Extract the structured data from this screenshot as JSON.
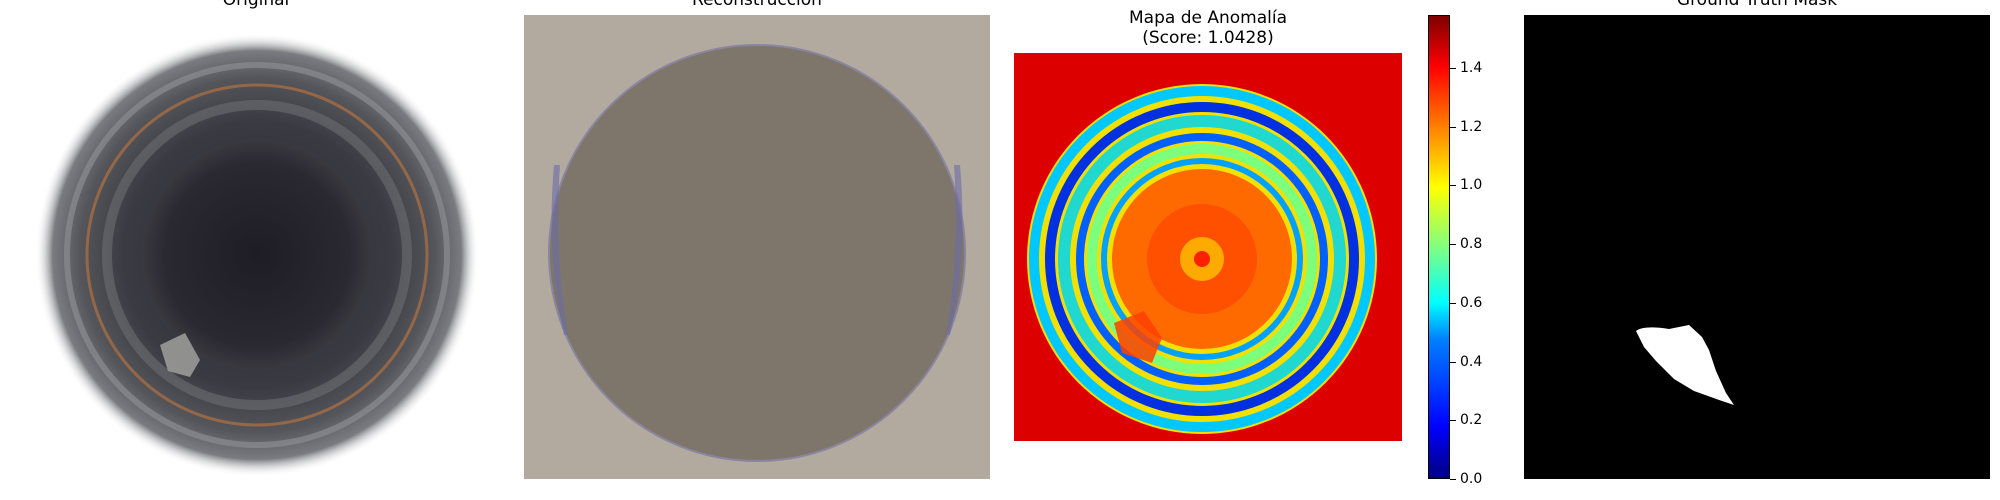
{
  "panels": {
    "original": {
      "title": "Original"
    },
    "reconstruction": {
      "title": "Reconstrucción"
    },
    "anomaly": {
      "title_line1": "Mapa de Anomalía",
      "title_line2": "(Score: 1.0428)"
    },
    "mask": {
      "title": "Ground Truth Mask"
    }
  },
  "colorbar": {
    "ticks": [
      "0.0",
      "0.2",
      "0.4",
      "0.6",
      "0.8",
      "1.0",
      "1.2",
      "1.4"
    ],
    "max": 1.58
  },
  "colors": {
    "recon_bg": "#b3aa9f",
    "recon_disc": "#7e766a",
    "anomaly_bg": "#dd0000",
    "mask_bg": "#000000",
    "mask_defect": "#ffffff"
  }
}
